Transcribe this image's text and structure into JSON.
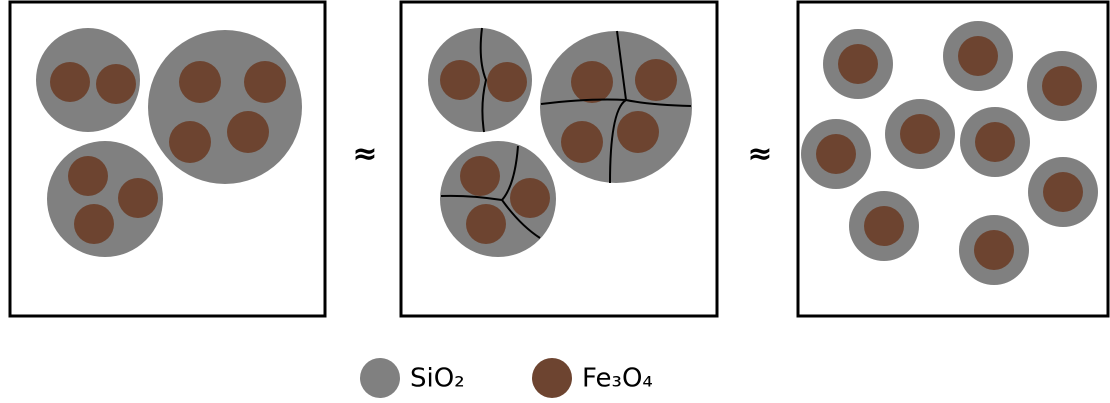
{
  "approx": [
    "≈",
    "≈"
  ],
  "legend": [
    {
      "label": "SiO₂"
    },
    {
      "label": "Fe₃O₄"
    }
  ]
}
